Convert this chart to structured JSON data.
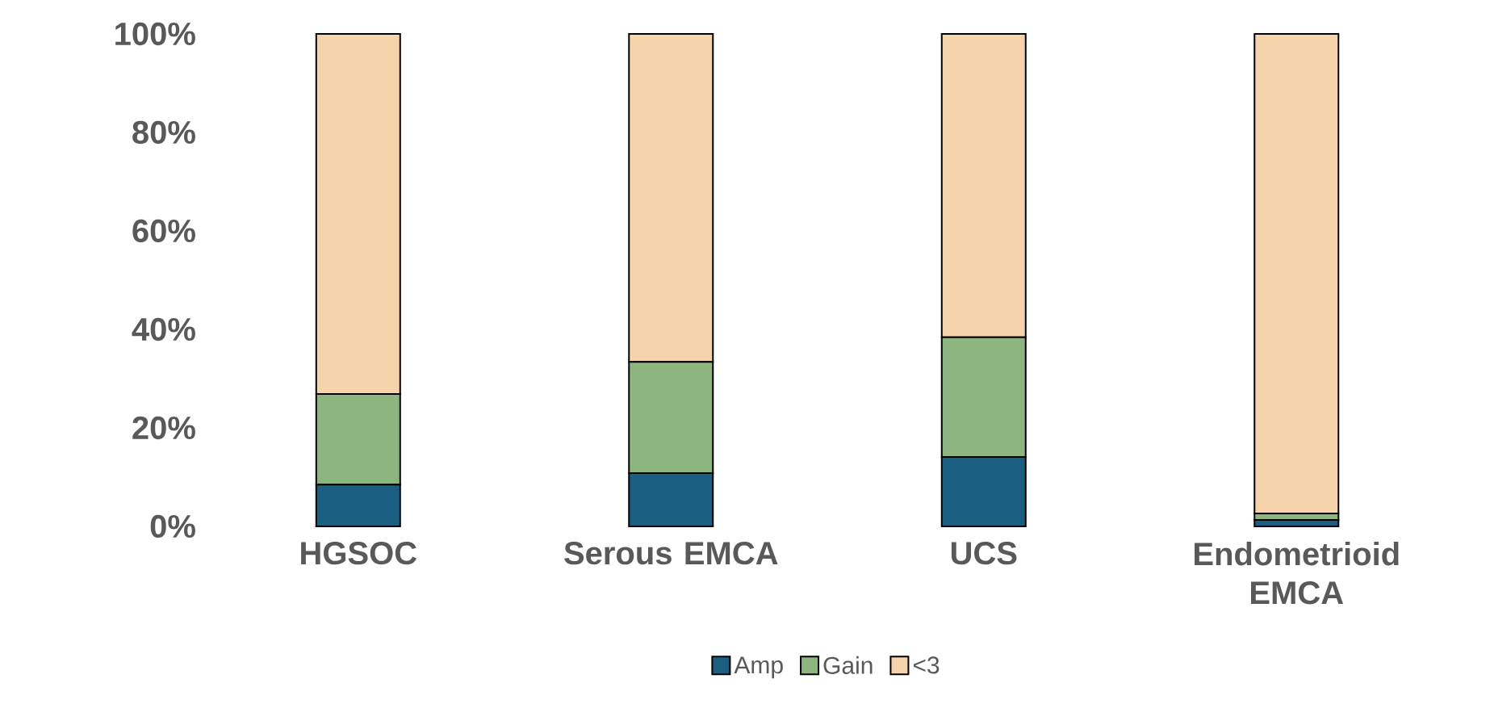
{
  "chart_data": {
    "type": "bar",
    "stacked": true,
    "categories": [
      "HGSOC",
      "Serous EMCA",
      "UCS",
      "Endometrioid EMCA"
    ],
    "series": [
      {
        "name": "Amp",
        "color": "#1a5e82",
        "values": [
          8.5,
          10.8,
          14.1,
          1.3
        ]
      },
      {
        "name": "Gain",
        "color": "#8db580",
        "values": [
          18.4,
          22.6,
          24.3,
          1.3
        ]
      },
      {
        "name": "<3",
        "color": "#f5d3ab",
        "values": [
          73.1,
          66.6,
          61.6,
          97.4
        ]
      }
    ],
    "ylim": [
      0,
      100
    ],
    "yticks": [
      {
        "value": 0,
        "label": "0%"
      },
      {
        "value": 20,
        "label": "20%"
      },
      {
        "value": 40,
        "label": "40%"
      },
      {
        "value": 60,
        "label": "60%"
      },
      {
        "value": 80,
        "label": "80%"
      },
      {
        "value": 100,
        "label": "100%"
      }
    ],
    "grid": false,
    "legend": "bottom"
  }
}
